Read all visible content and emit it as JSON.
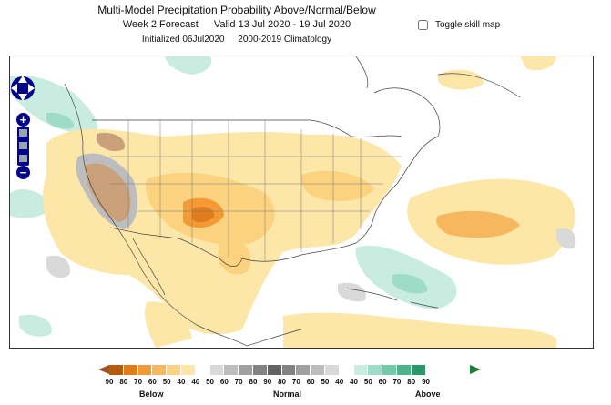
{
  "header": {
    "title": "Multi-Model Precipitation Probability Above/Normal/Below",
    "forecast": "Week 2 Forecast",
    "valid": "Valid 13 Jul 2020 - 19 Jul 2020",
    "initialized": "Initialized 06Jul2020",
    "climatology": "2000-2019 Climatology"
  },
  "toggle": {
    "label": "Toggle skill map",
    "checked": false
  },
  "map_controls": {
    "pan": "pan-icon",
    "zoom_in": "+",
    "zoom_out": "−"
  },
  "legend": {
    "colors": [
      "#b65c10",
      "#df7c1b",
      "#f39a34",
      "#f7b75f",
      "#fbd27f",
      "#fde7a8",
      "#ffffff",
      "#d9d9d9",
      "#bdbdbd",
      "#9f9f9f",
      "#828282",
      "#646464",
      "#828282",
      "#9f9f9f",
      "#bdbdbd",
      "#d9d9d9",
      "#ffffff",
      "#c8ece0",
      "#9fdcc8",
      "#74c9a8",
      "#4db28a",
      "#2c9868"
    ],
    "ticks": [
      "90",
      "80",
      "70",
      "60",
      "50",
      "40",
      "40",
      "50",
      "60",
      "70",
      "80",
      "90",
      "80",
      "70",
      "60",
      "50",
      "40",
      "40",
      "50",
      "60",
      "70",
      "80",
      "90"
    ],
    "below_label": "Below",
    "normal_label": "Normal",
    "above_label": "Above",
    "arrow_left_color": "#a0522d",
    "arrow_right_color": "#1e7b34"
  }
}
